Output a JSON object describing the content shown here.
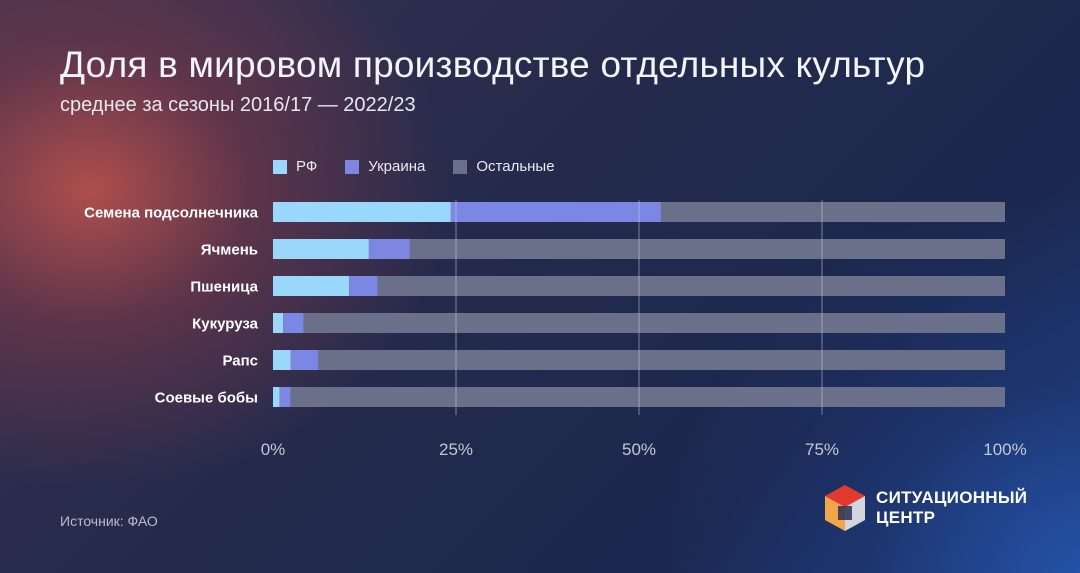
{
  "title": "Доля в мировом производстве отдельных культур",
  "subtitle": "среднее за сезоны 2016/17 — 2022/23",
  "source": "Источник: ФАО",
  "logo": {
    "line1": "СИТУАЦИОННЫЙ",
    "line2": "ЦЕНТР"
  },
  "colors": {
    "rf": "#9ad8fb",
    "ukraine": "#7b87e2",
    "others": "#6a7089",
    "grid": "#c8ccd8",
    "label": "#ffffff",
    "tick": "#c3c7d4"
  },
  "chart_data": {
    "type": "bar",
    "orientation": "horizontal",
    "stacked": true,
    "categories": [
      "Семена подсолнечника",
      "Ячмень",
      "Пшеница",
      "Кукуруза",
      "Рапс",
      "Соевые бобы"
    ],
    "series": [
      {
        "name": "РФ",
        "values": [
          24.3,
          13.1,
          10.4,
          1.4,
          2.4,
          0.9
        ]
      },
      {
        "name": "Украина",
        "values": [
          28.7,
          5.6,
          3.9,
          2.8,
          3.8,
          1.5
        ]
      },
      {
        "name": "Остальные",
        "values": [
          47.0,
          81.3,
          85.7,
          95.8,
          93.8,
          97.6
        ]
      }
    ],
    "xlim": [
      0,
      100
    ],
    "xticks": [
      "0%",
      "25%",
      "50%",
      "75%",
      "100%"
    ],
    "grid": true,
    "legend_position": "top"
  }
}
